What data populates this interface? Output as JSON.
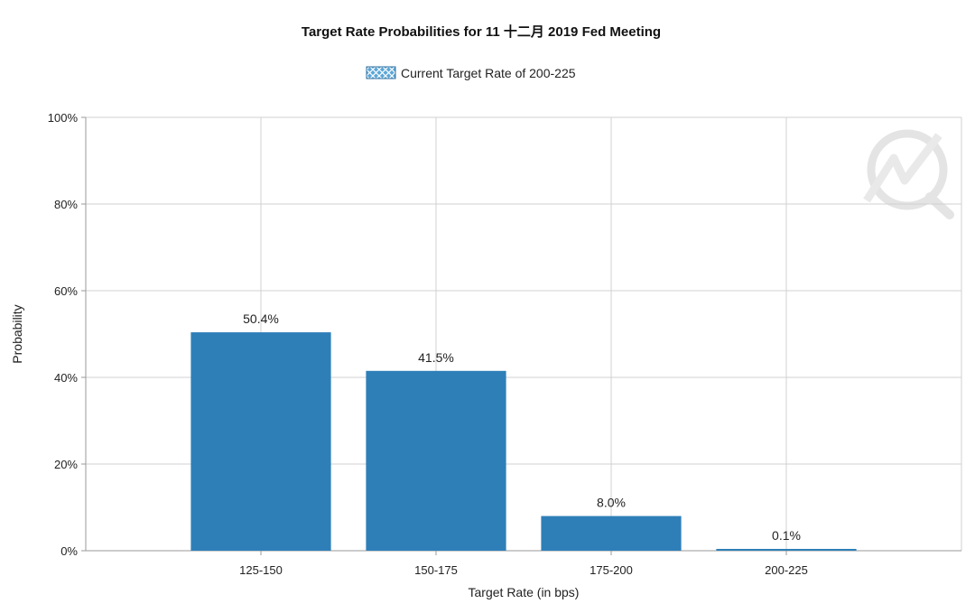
{
  "chart_data": {
    "type": "bar",
    "title": "Target Rate Probabilities for 11 十二月 2019 Fed Meeting",
    "xlabel": "Target Rate (in bps)",
    "ylabel": "Probability",
    "categories": [
      "125-150",
      "150-175",
      "175-200",
      "200-225"
    ],
    "series": [
      {
        "name": "Current Target Rate of 200-225",
        "values": [
          50.4,
          41.5,
          8.0,
          0.1
        ],
        "labels": [
          "50.4%",
          "41.5%",
          "8.0%",
          "0.1%"
        ]
      }
    ],
    "ylim": [
      0,
      100
    ],
    "yticks": [
      0,
      20,
      40,
      60,
      80,
      100
    ],
    "ytick_labels": [
      "0%",
      "20%",
      "40%",
      "60%",
      "80%",
      "100%"
    ],
    "grid": true,
    "legend_position": "top-center",
    "colors": {
      "bar": "#2e7fb8",
      "grid": "#d0d0d0",
      "axis": "#9a9a9a",
      "text": "#222222",
      "legend_swatch_fill": "#5aa6d8",
      "legend_swatch_pattern": "#ffffff",
      "watermark": "#e6e6e6"
    },
    "watermark_icon": "quikstrike-logo-icon"
  }
}
